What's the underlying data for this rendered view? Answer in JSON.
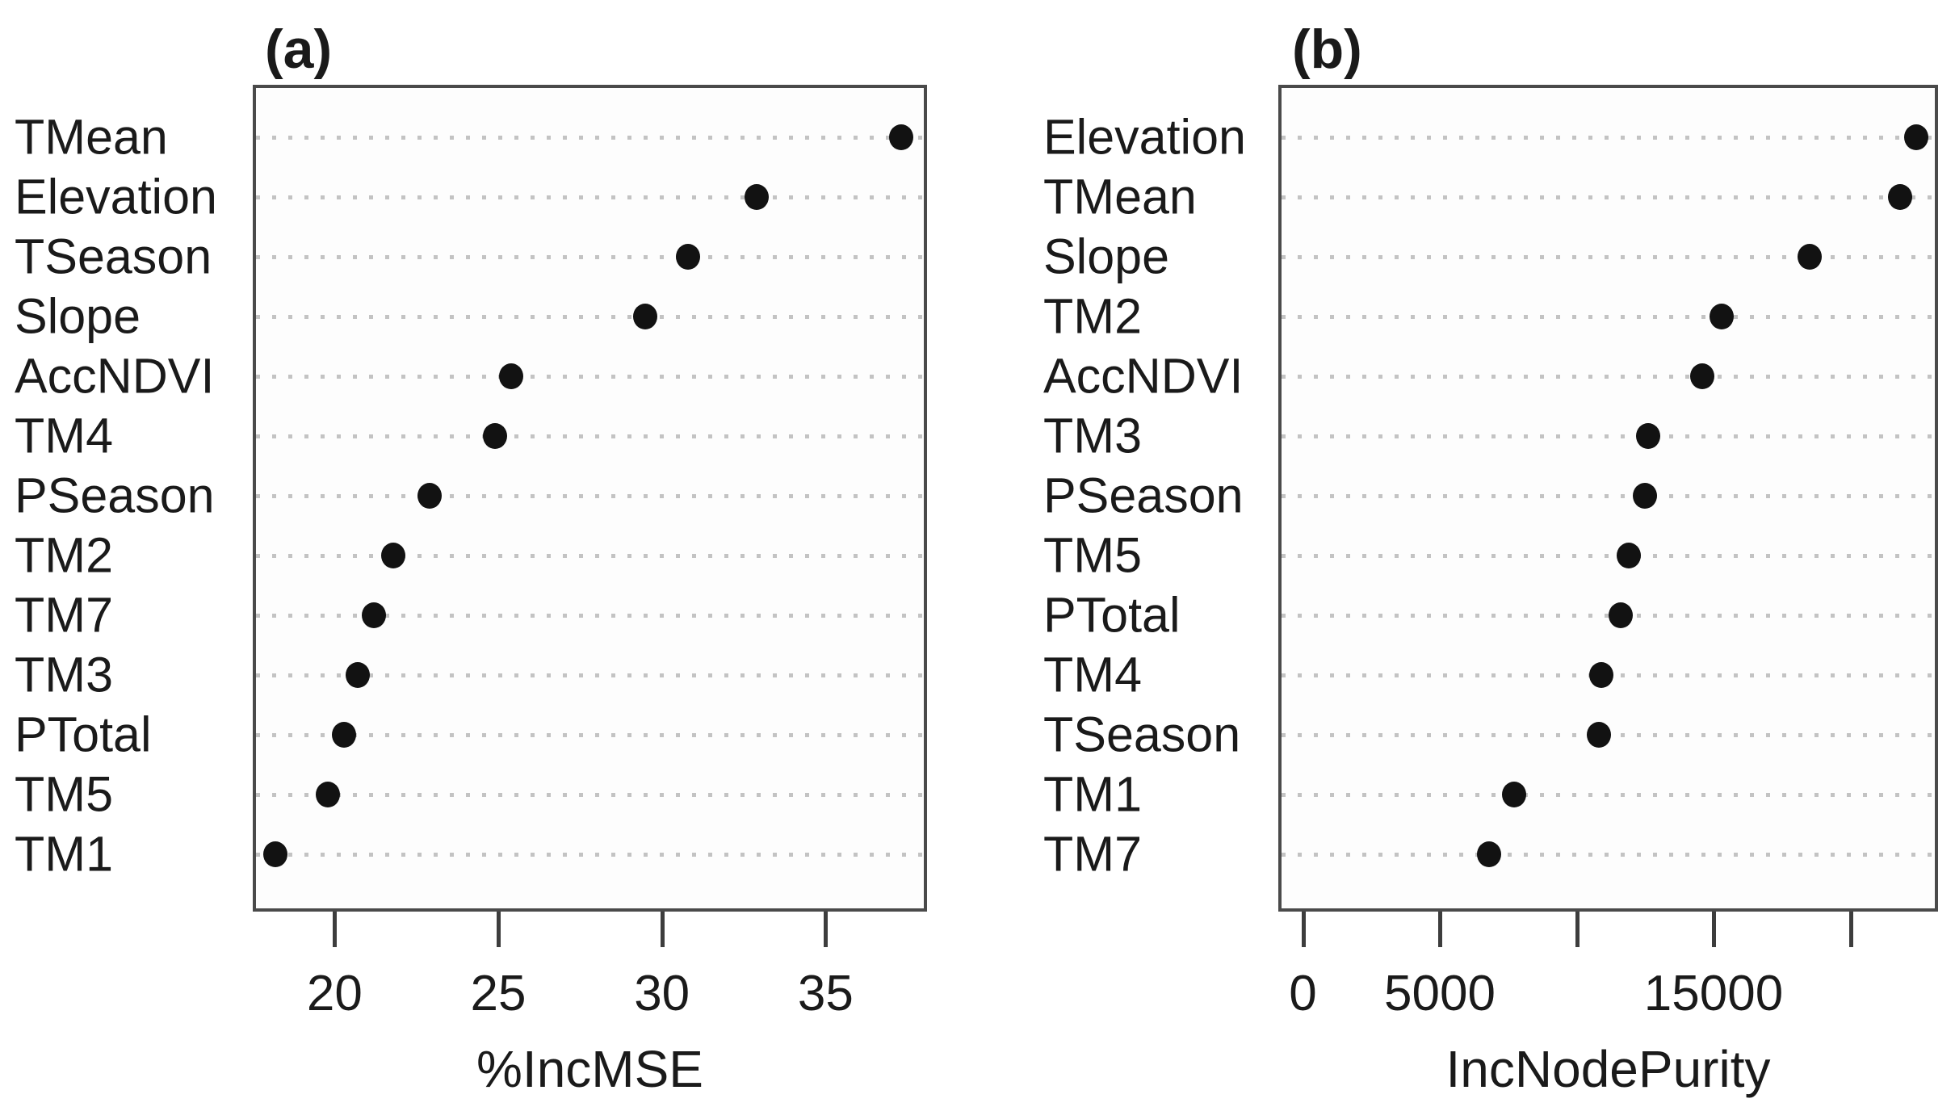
{
  "figure": {
    "background": "#ffffff",
    "frame_color": "#4a4a4a",
    "grid_color": "#c3c3c3",
    "marker_color": "#121212",
    "text_color": "#1a1a1a"
  },
  "chart_data": [
    {
      "type": "scatter",
      "variant": "dot-plot",
      "panel_label": "(a)",
      "xlabel": "%IncMSE",
      "grid": "dotted-horizontal-leaders",
      "legend": "none",
      "xlim": [
        17.5,
        38.1
      ],
      "xticks": [
        20,
        25,
        30,
        35
      ],
      "xtick_labels": [
        "20",
        "25",
        "30",
        "35"
      ],
      "categories": [
        "TMean",
        "Elevation",
        "TSeason",
        "Slope",
        "AccNDVI",
        "TM4",
        "PSeason",
        "TM2",
        "TM7",
        "TM3",
        "PTotal",
        "TM5",
        "TM1"
      ],
      "values": [
        37.3,
        32.9,
        30.8,
        29.5,
        25.4,
        24.9,
        22.9,
        21.8,
        21.2,
        20.7,
        20.3,
        19.8,
        18.2
      ]
    },
    {
      "type": "scatter",
      "variant": "dot-plot",
      "panel_label": "(b)",
      "xlabel": "IncNodePurity",
      "grid": "dotted-horizontal-leaders",
      "legend": "none",
      "xlim": [
        -900,
        23200
      ],
      "xticks": [
        0,
        5000,
        10000,
        15000,
        20000
      ],
      "xtick_labels": [
        "0",
        "5000",
        "",
        "15000",
        ""
      ],
      "categories": [
        "Elevation",
        "TMean",
        "Slope",
        "TM2",
        "AccNDVI",
        "TM3",
        "PSeason",
        "TM5",
        "PTotal",
        "TM4",
        "TSeason",
        "TM1",
        "TM7"
      ],
      "values": [
        22400,
        21800,
        18500,
        15300,
        14600,
        12600,
        12500,
        11900,
        11600,
        10900,
        10800,
        7700,
        6800
      ]
    }
  ]
}
